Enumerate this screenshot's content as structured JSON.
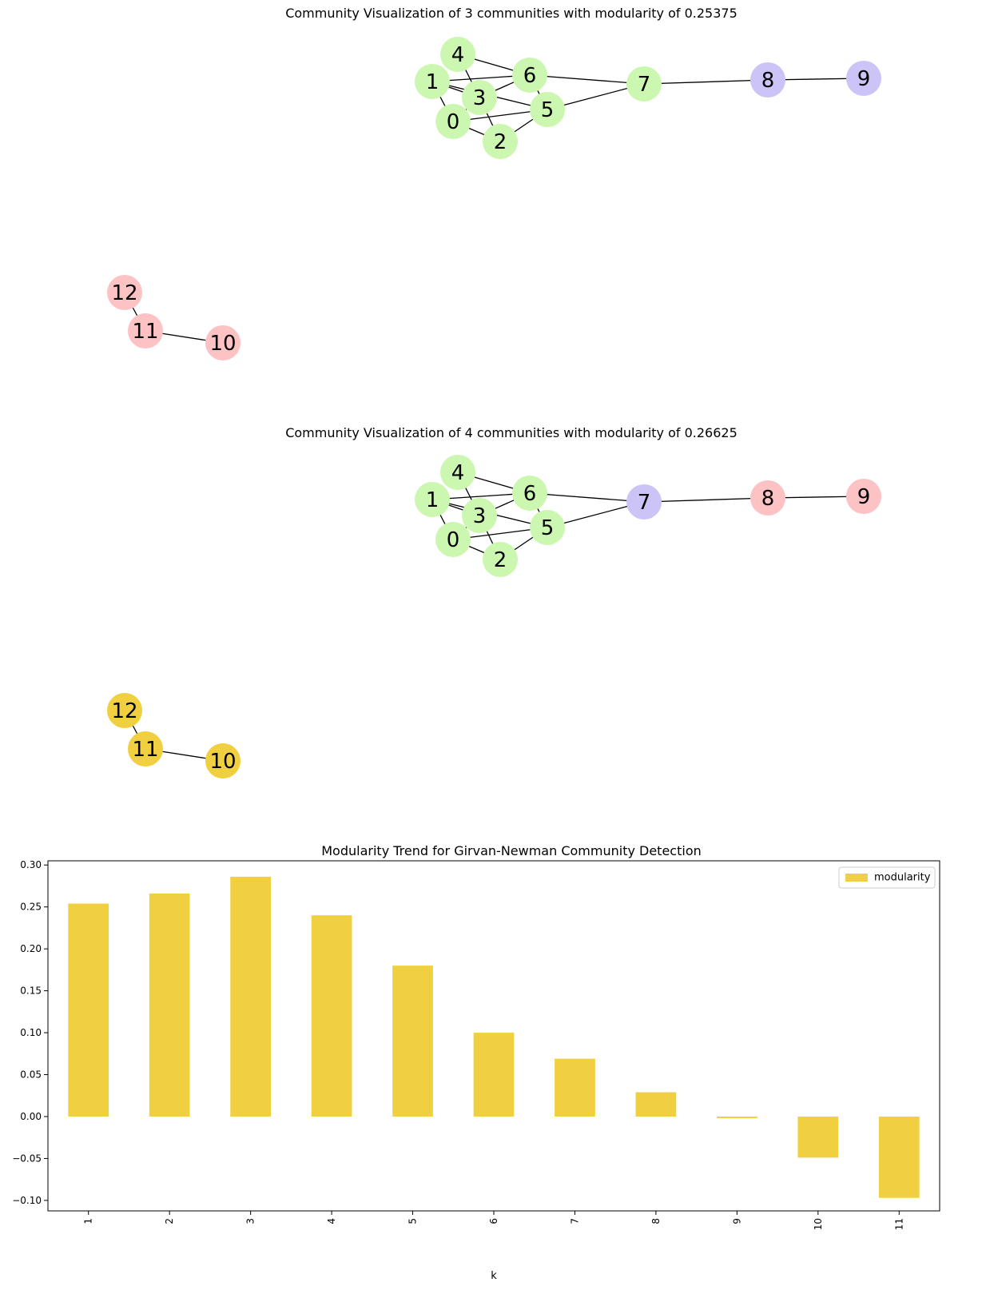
{
  "chart_data": [
    {
      "type": "network",
      "title": "Community Visualization of 3 communities with modularity of 0.25375",
      "node_labels": [
        "0",
        "1",
        "2",
        "3",
        "4",
        "5",
        "6",
        "7",
        "8",
        "9",
        "10",
        "11",
        "12"
      ],
      "edges": [
        [
          0,
          1
        ],
        [
          0,
          2
        ],
        [
          0,
          3
        ],
        [
          0,
          5
        ],
        [
          1,
          3
        ],
        [
          1,
          5
        ],
        [
          1,
          6
        ],
        [
          2,
          3
        ],
        [
          2,
          5
        ],
        [
          3,
          4
        ],
        [
          3,
          6
        ],
        [
          4,
          6
        ],
        [
          5,
          6
        ],
        [
          5,
          7
        ],
        [
          6,
          7
        ],
        [
          7,
          8
        ],
        [
          8,
          9
        ],
        [
          10,
          11
        ],
        [
          11,
          12
        ]
      ],
      "communities": [
        [
          0,
          1,
          2,
          3,
          4,
          5,
          6,
          7
        ],
        [
          8,
          9
        ],
        [
          10,
          11,
          12
        ]
      ],
      "community_colors": [
        "#ccf7b0",
        "#ccc4f6",
        "#fcc2c4"
      ]
    },
    {
      "type": "network",
      "title": "Community Visualization of 4 communities with modularity of 0.26625",
      "node_labels": [
        "0",
        "1",
        "2",
        "3",
        "4",
        "5",
        "6",
        "7",
        "8",
        "9",
        "10",
        "11",
        "12"
      ],
      "edges": [
        [
          0,
          1
        ],
        [
          0,
          2
        ],
        [
          0,
          3
        ],
        [
          0,
          5
        ],
        [
          1,
          3
        ],
        [
          1,
          5
        ],
        [
          1,
          6
        ],
        [
          2,
          3
        ],
        [
          2,
          5
        ],
        [
          3,
          4
        ],
        [
          3,
          6
        ],
        [
          4,
          6
        ],
        [
          5,
          6
        ],
        [
          5,
          7
        ],
        [
          6,
          7
        ],
        [
          7,
          8
        ],
        [
          8,
          9
        ],
        [
          10,
          11
        ],
        [
          11,
          12
        ]
      ],
      "communities": [
        [
          0,
          1,
          2,
          3,
          4,
          5,
          6
        ],
        [
          7
        ],
        [
          8,
          9
        ],
        [
          10,
          11,
          12
        ]
      ],
      "community_colors": [
        "#ccf7b0",
        "#ccc4f6",
        "#fcc2c4",
        "#f0d040"
      ]
    },
    {
      "type": "bar",
      "title": "Modularity Trend for Girvan-Newman Community Detection",
      "xlabel": "k",
      "ylabel": "",
      "categories": [
        "1",
        "2",
        "3",
        "4",
        "5",
        "6",
        "7",
        "8",
        "9",
        "10",
        "11"
      ],
      "series": [
        {
          "name": "modularity",
          "values": [
            0.254,
            0.266,
            0.286,
            0.24,
            0.18,
            0.1,
            0.069,
            0.029,
            -0.002,
            -0.049,
            -0.097
          ],
          "color": "#f0d040"
        }
      ],
      "ylim": [
        -0.1125,
        0.305
      ],
      "yticks": [
        -0.1,
        -0.05,
        0.0,
        0.05,
        0.1,
        0.15,
        0.2,
        0.25,
        0.3
      ],
      "ytick_labels": [
        "−0.10",
        "−0.05",
        "0.00",
        "0.05",
        "0.10",
        "0.15",
        "0.20",
        "0.25",
        "0.30"
      ],
      "legend": "top-right",
      "grid": false
    }
  ]
}
